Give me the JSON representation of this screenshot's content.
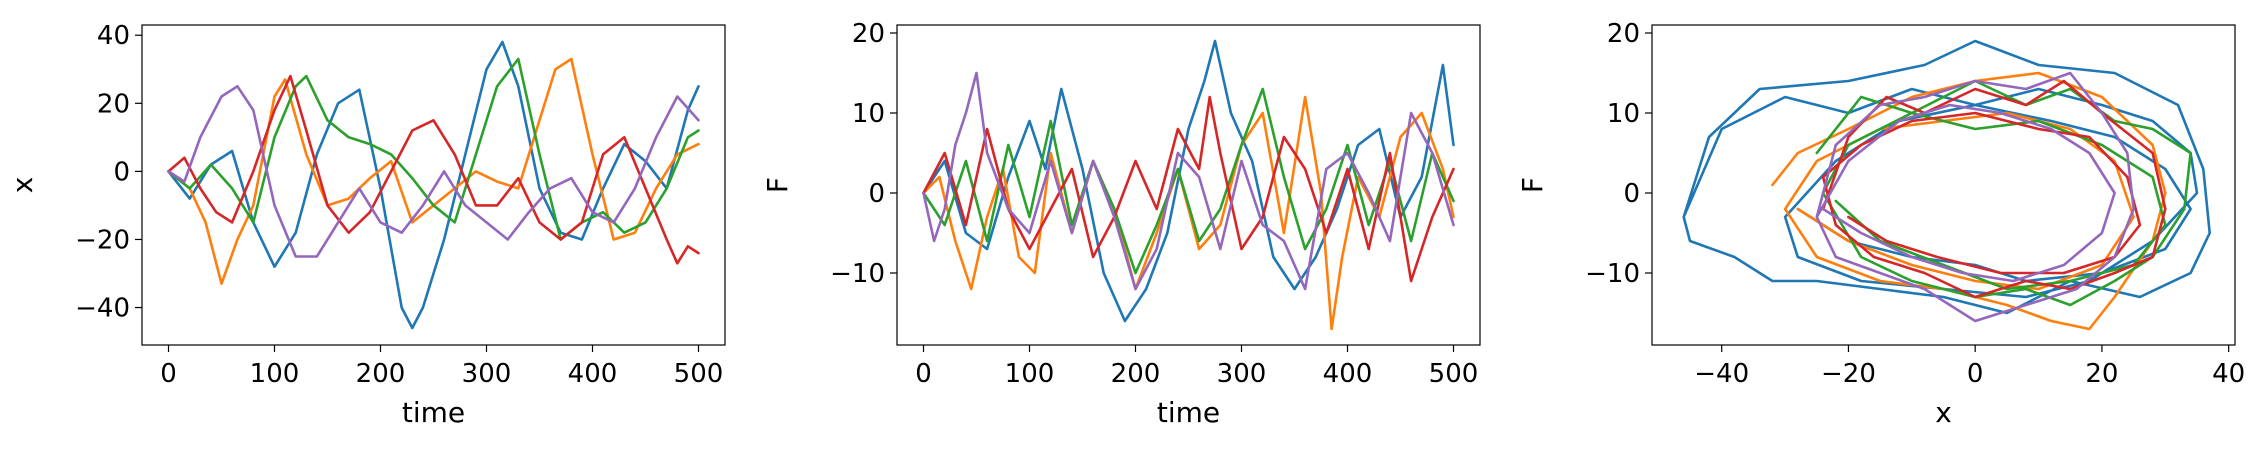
{
  "chart_data": [
    {
      "type": "line",
      "panel": "x-vs-time",
      "title": "",
      "xlabel": "time",
      "ylabel": "x",
      "xlim": [
        -25,
        525
      ],
      "ylim": [
        -51,
        43
      ],
      "xticks": [
        0,
        100,
        200,
        300,
        400,
        500
      ],
      "yticks": [
        -40,
        -20,
        0,
        20,
        40
      ],
      "grid": false,
      "legend": "none",
      "series": [
        {
          "color": "#1f77b4",
          "x": [
            0,
            20,
            40,
            60,
            80,
            100,
            120,
            140,
            160,
            180,
            200,
            220,
            230,
            240,
            260,
            280,
            300,
            315,
            330,
            350,
            370,
            390,
            410,
            430,
            450,
            470,
            490,
            500
          ],
          "y": [
            0,
            -8,
            2,
            6,
            -15,
            -28,
            -18,
            5,
            20,
            24,
            -5,
            -40,
            -46,
            -40,
            -20,
            5,
            30,
            38,
            25,
            -5,
            -18,
            -20,
            -5,
            8,
            3,
            -5,
            18,
            25
          ]
        },
        {
          "color": "#ff7f0e",
          "x": [
            0,
            20,
            35,
            50,
            65,
            80,
            100,
            110,
            130,
            150,
            170,
            190,
            210,
            230,
            250,
            270,
            290,
            310,
            330,
            350,
            365,
            380,
            400,
            420,
            440,
            460,
            480,
            500
          ],
          "y": [
            0,
            -5,
            -15,
            -33,
            -20,
            -10,
            22,
            27,
            5,
            -10,
            -8,
            -2,
            3,
            -15,
            -10,
            -5,
            0,
            -3,
            -5,
            15,
            30,
            33,
            5,
            -20,
            -18,
            -5,
            5,
            8
          ]
        },
        {
          "color": "#2ca02c",
          "x": [
            0,
            20,
            40,
            60,
            80,
            100,
            120,
            130,
            150,
            170,
            190,
            210,
            230,
            250,
            270,
            290,
            310,
            330,
            350,
            370,
            390,
            410,
            430,
            450,
            470,
            490,
            500
          ],
          "y": [
            0,
            -5,
            2,
            -5,
            -15,
            10,
            25,
            28,
            15,
            10,
            8,
            5,
            -2,
            -10,
            -15,
            5,
            25,
            33,
            5,
            -20,
            -15,
            -12,
            -18,
            -15,
            -5,
            10,
            12
          ]
        },
        {
          "color": "#d62728",
          "x": [
            0,
            15,
            30,
            45,
            60,
            80,
            100,
            115,
            130,
            150,
            170,
            190,
            210,
            230,
            250,
            270,
            290,
            310,
            330,
            350,
            370,
            390,
            410,
            430,
            450,
            470,
            480,
            490,
            500
          ],
          "y": [
            0,
            4,
            -5,
            -12,
            -15,
            0,
            18,
            28,
            12,
            -10,
            -18,
            -12,
            0,
            12,
            15,
            5,
            -10,
            -10,
            -2,
            -15,
            -20,
            -15,
            5,
            10,
            -5,
            -20,
            -27,
            -22,
            -24
          ]
        },
        {
          "color": "#9467bd",
          "x": [
            0,
            15,
            30,
            50,
            65,
            80,
            100,
            120,
            140,
            160,
            180,
            200,
            220,
            240,
            260,
            280,
            300,
            320,
            340,
            360,
            380,
            400,
            420,
            440,
            460,
            480,
            500
          ],
          "y": [
            0,
            -3,
            10,
            22,
            25,
            18,
            -10,
            -25,
            -25,
            -15,
            -5,
            -15,
            -18,
            -10,
            0,
            -10,
            -15,
            -20,
            -12,
            -5,
            -2,
            -12,
            -15,
            -5,
            10,
            22,
            15
          ]
        }
      ]
    },
    {
      "type": "line",
      "panel": "F-vs-time",
      "title": "",
      "xlabel": "time",
      "ylabel": "F",
      "xlim": [
        -25,
        525
      ],
      "ylim": [
        -19,
        21
      ],
      "xticks": [
        0,
        100,
        200,
        300,
        400,
        500
      ],
      "yticks": [
        -10,
        0,
        10,
        20
      ],
      "grid": false,
      "legend": "none",
      "series": [
        {
          "color": "#1f77b4",
          "x": [
            0,
            20,
            40,
            60,
            80,
            100,
            115,
            130,
            150,
            170,
            190,
            210,
            230,
            250,
            265,
            275,
            290,
            310,
            330,
            350,
            370,
            390,
            410,
            430,
            450,
            470,
            490,
            500
          ],
          "y": [
            0,
            4,
            -5,
            -7,
            2,
            9,
            3,
            13,
            3,
            -10,
            -16,
            -12,
            -5,
            8,
            14,
            19,
            10,
            4,
            -8,
            -12,
            -8,
            -2,
            6,
            8,
            -3,
            2,
            16,
            6
          ]
        },
        {
          "color": "#ff7f0e",
          "x": [
            0,
            15,
            30,
            45,
            60,
            75,
            90,
            105,
            120,
            140,
            160,
            180,
            200,
            220,
            240,
            260,
            280,
            300,
            320,
            340,
            360,
            375,
            385,
            395,
            410,
            430,
            450,
            470,
            490,
            500
          ],
          "y": [
            0,
            2,
            -6,
            -12,
            -3,
            3,
            -8,
            -10,
            5,
            -5,
            4,
            -2,
            -12,
            -5,
            3,
            -7,
            -4,
            6,
            10,
            -5,
            12,
            0,
            -17,
            -8,
            2,
            -3,
            7,
            10,
            3,
            -3
          ]
        },
        {
          "color": "#2ca02c",
          "x": [
            0,
            20,
            40,
            60,
            80,
            100,
            120,
            140,
            160,
            180,
            200,
            220,
            240,
            260,
            280,
            300,
            320,
            340,
            360,
            380,
            400,
            420,
            440,
            460,
            480,
            500
          ],
          "y": [
            0,
            -4,
            4,
            -6,
            6,
            -3,
            9,
            -4,
            4,
            -2,
            -10,
            -4,
            3,
            -6,
            -2,
            6,
            13,
            2,
            -7,
            -2,
            6,
            -4,
            4,
            -6,
            5,
            -1
          ]
        },
        {
          "color": "#d62728",
          "x": [
            0,
            20,
            40,
            60,
            80,
            100,
            120,
            140,
            160,
            180,
            200,
            220,
            240,
            260,
            270,
            280,
            300,
            320,
            340,
            360,
            380,
            400,
            420,
            440,
            460,
            480,
            500
          ],
          "y": [
            0,
            5,
            -4,
            8,
            -2,
            -7,
            -2,
            3,
            -8,
            -3,
            4,
            -2,
            8,
            3,
            12,
            5,
            -7,
            -3,
            7,
            3,
            -5,
            3,
            -7,
            5,
            -11,
            -3,
            3
          ]
        },
        {
          "color": "#9467bd",
          "x": [
            0,
            10,
            20,
            30,
            40,
            50,
            60,
            80,
            100,
            120,
            140,
            160,
            180,
            200,
            220,
            240,
            260,
            280,
            300,
            320,
            340,
            360,
            380,
            400,
            420,
            440,
            460,
            480,
            500
          ],
          "y": [
            0,
            -6,
            -2,
            6,
            10,
            15,
            5,
            -2,
            -5,
            4,
            -5,
            4,
            -3,
            -12,
            -7,
            5,
            2,
            -7,
            4,
            -4,
            -6,
            -12,
            3,
            5,
            0,
            -6,
            10,
            5,
            -4
          ]
        }
      ]
    },
    {
      "type": "line",
      "panel": "F-vs-x",
      "title": "",
      "xlabel": "x",
      "ylabel": "F",
      "xlim": [
        -51,
        41
      ],
      "ylim": [
        -19,
        21
      ],
      "xticks": [
        -40,
        -20,
        0,
        20,
        40
      ],
      "yticks": [
        -10,
        0,
        10,
        20
      ],
      "grid": false,
      "legend": "none",
      "series": [
        {
          "color": "#1f77b4",
          "x": [
            -46,
            -42,
            -34,
            -20,
            -8,
            0,
            10,
            22,
            32,
            36,
            37,
            34,
            26,
            15,
            5,
            -5,
            -15,
            -25,
            -32,
            -38,
            -45,
            -46,
            -40,
            -30,
            -20,
            -10,
            0,
            10,
            20,
            28,
            34,
            35,
            28,
            18,
            8,
            -5,
            -18,
            -28,
            -30,
            -22,
            -12,
            0,
            12,
            22,
            30,
            34,
            30,
            20,
            8,
            0,
            -10,
            -20,
            -28
          ],
          "y": [
            -3,
            7,
            13,
            14,
            16,
            19,
            16,
            15,
            11,
            3,
            -5,
            -10,
            -13,
            -11,
            -15,
            -13,
            -12,
            -11,
            -11,
            -8,
            -6,
            -3,
            8,
            12,
            10,
            13,
            11,
            13,
            11,
            9,
            5,
            0,
            -6,
            -11,
            -13,
            -12,
            -11,
            -8,
            -3,
            4,
            9,
            11,
            9,
            7,
            3,
            -2,
            -7,
            -10,
            -11,
            -9,
            -8,
            -6,
            -2
          ]
        },
        {
          "color": "#ff7f0e",
          "x": [
            -32,
            -28,
            -20,
            -10,
            0,
            10,
            20,
            28,
            30,
            28,
            22,
            18,
            12,
            5,
            -5,
            -15,
            -25,
            -30,
            -25,
            -15,
            -5,
            5,
            15,
            22,
            25,
            20,
            10,
            0,
            -10,
            -20,
            -28
          ],
          "y": [
            1,
            5,
            8,
            12,
            14,
            15,
            12,
            6,
            0,
            -6,
            -13,
            -17,
            -16,
            -14,
            -12,
            -11,
            -8,
            -2,
            4,
            8,
            9,
            10,
            8,
            4,
            -3,
            -9,
            -12,
            -11,
            -9,
            -6,
            -2
          ]
        },
        {
          "color": "#2ca02c",
          "x": [
            -25,
            -18,
            -10,
            0,
            8,
            15,
            22,
            28,
            34,
            33,
            28,
            22,
            15,
            8,
            0,
            -10,
            -18,
            -24,
            -20,
            -10,
            0,
            10,
            20,
            28,
            30,
            25,
            15,
            5,
            -5,
            -15,
            -22
          ],
          "y": [
            5,
            12,
            10,
            14,
            11,
            13,
            9,
            8,
            5,
            -2,
            -8,
            -11,
            -14,
            -12,
            -13,
            -11,
            -8,
            0,
            6,
            10,
            8,
            9,
            6,
            2,
            -4,
            -9,
            -11,
            -12,
            -9,
            -6,
            -1
          ]
        },
        {
          "color": "#d62728",
          "x": [
            -24,
            -20,
            -14,
            -8,
            0,
            8,
            14,
            20,
            28,
            30,
            28,
            22,
            15,
            8,
            0,
            -8,
            -16,
            -22,
            -24,
            -18,
            -10,
            0,
            10,
            18,
            24,
            26,
            22,
            14,
            4,
            -6,
            -14,
            -20
          ],
          "y": [
            -2,
            7,
            12,
            10,
            13,
            11,
            14,
            10,
            5,
            -2,
            -8,
            -10,
            -12,
            -11,
            -13,
            -10,
            -8,
            -4,
            2,
            6,
            9,
            10,
            8,
            7,
            2,
            -4,
            -8,
            -10,
            -10,
            -8,
            -6,
            -3
          ]
        },
        {
          "color": "#9467bd",
          "x": [
            -25,
            -22,
            -15,
            -8,
            0,
            8,
            15,
            20,
            24,
            25,
            22,
            16,
            8,
            0,
            -8,
            -15,
            -22,
            -25,
            -20,
            -12,
            -4,
            4,
            12,
            18,
            22,
            20,
            14,
            6,
            -2,
            -10,
            -18,
            -24
          ],
          "y": [
            -3,
            6,
            11,
            12,
            14,
            13,
            15,
            10,
            5,
            -2,
            -8,
            -12,
            -14,
            -16,
            -12,
            -10,
            -8,
            -3,
            4,
            9,
            11,
            10,
            8,
            5,
            0,
            -5,
            -9,
            -11,
            -10,
            -8,
            -5,
            -2
          ]
        }
      ]
    }
  ]
}
